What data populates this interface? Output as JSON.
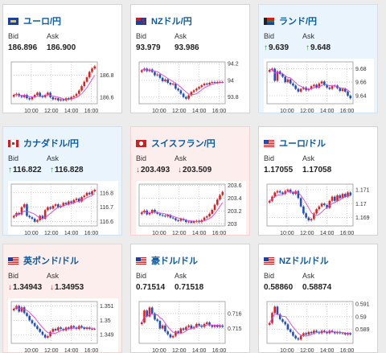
{
  "colors": {
    "up_arrow": "#2a9b2a",
    "down_arrow": "#d02828",
    "title": "#0b5aa6",
    "ma_line": "#e040e0",
    "candle_up": "#e02020",
    "candle_down": "#1f4fc4"
  },
  "cards": [
    {
      "title": "ユーロ/円",
      "flag": "eu-flag-icon",
      "trend": "neutral",
      "bid_label": "Bid",
      "ask_label": "Ask",
      "bid": "186.896",
      "ask": "186.900",
      "arrow": "",
      "chart_data": {
        "type": "candlestick",
        "x_ticks": [
          "10:00",
          "12:00",
          "14:00",
          "16:00"
        ],
        "y_ticks": [
          "186.8",
          "186.6"
        ],
        "closes": [
          186.62,
          186.63,
          186.61,
          186.6,
          186.62,
          186.59,
          186.58,
          186.6,
          186.62,
          186.64,
          186.61,
          186.6,
          186.62,
          186.64,
          186.6,
          186.58,
          186.59,
          186.57,
          186.58,
          186.57,
          186.59,
          186.58,
          186.6,
          186.61,
          186.63,
          186.66,
          186.7,
          186.74,
          186.78,
          186.83,
          186.86,
          186.88
        ],
        "ylim": [
          186.54,
          186.92
        ]
      }
    },
    {
      "title": "NZドル/円",
      "flag": "nz-flag-icon",
      "trend": "neutral",
      "bid_label": "Bid",
      "ask_label": "Ask",
      "bid": "93.979",
      "ask": "93.986",
      "arrow": "",
      "chart_data": {
        "type": "candlestick",
        "x_ticks": [
          "10:00",
          "12:00",
          "14:00",
          "16:00"
        ],
        "y_ticks": [
          "94.2",
          "94",
          "93.8"
        ],
        "closes": [
          94.12,
          94.14,
          94.11,
          94.13,
          94.1,
          94.06,
          94.07,
          94.03,
          93.99,
          94.01,
          93.97,
          93.95,
          93.96,
          93.9,
          93.88,
          93.84,
          93.8,
          93.78,
          93.82,
          93.86,
          93.88,
          93.9,
          93.92,
          93.94,
          93.96,
          93.95,
          93.97,
          93.98,
          93.97,
          93.98,
          93.98,
          93.98
        ],
        "ylim": [
          93.72,
          94.22
        ]
      }
    },
    {
      "title": "ランド/円",
      "flag": "za-flag-icon",
      "trend": "up",
      "bid_label": "Bid",
      "ask_label": "Ask",
      "bid": "9.639",
      "ask": "9.648",
      "arrow": "↑",
      "chart_data": {
        "type": "candlestick",
        "x_ticks": [
          "10:00",
          "12:00",
          "14:00",
          "16:00"
        ],
        "y_ticks": [
          "9.68",
          "9.66",
          "9.64"
        ],
        "closes": [
          9.678,
          9.68,
          9.662,
          9.676,
          9.672,
          9.668,
          9.66,
          9.664,
          9.658,
          9.655,
          9.65,
          9.646,
          9.65,
          9.652,
          9.648,
          9.65,
          9.654,
          9.656,
          9.652,
          9.658,
          9.661,
          9.656,
          9.652,
          9.65,
          9.654,
          9.655,
          9.651,
          9.647,
          9.65,
          9.646,
          9.64,
          9.636
        ],
        "ylim": [
          9.628,
          9.69
        ]
      }
    },
    {
      "title": "カナダドル/円",
      "flag": "ca-flag-icon",
      "trend": "up",
      "bid_label": "Bid",
      "ask_label": "Ask",
      "bid": "116.822",
      "ask": "116.828",
      "arrow": "↑",
      "chart_data": {
        "type": "candlestick",
        "x_ticks": [
          "10:00",
          "12:00",
          "14:00",
          "16:00"
        ],
        "y_ticks": [
          "116.8",
          "116.7",
          "116.6"
        ],
        "closes": [
          116.64,
          116.66,
          116.65,
          116.7,
          116.72,
          116.64,
          116.63,
          116.62,
          116.6,
          116.61,
          116.64,
          116.62,
          116.68,
          116.7,
          116.69,
          116.71,
          116.72,
          116.7,
          116.71,
          116.73,
          116.72,
          116.74,
          116.73,
          116.75,
          116.76,
          116.74,
          116.77,
          116.78,
          116.8,
          116.79,
          116.81,
          116.82
        ],
        "ylim": [
          116.57,
          116.86
        ]
      }
    },
    {
      "title": "スイスフラン/円",
      "flag": "ch-flag-icon",
      "trend": "down",
      "bid_label": "Bid",
      "ask_label": "Ask",
      "bid": "203.493",
      "ask": "203.509",
      "arrow": "↓",
      "chart_data": {
        "type": "candlestick",
        "x_ticks": [
          "10:00",
          "12:00",
          "14:00",
          "16:00"
        ],
        "y_ticks": [
          "203.6",
          "203.4",
          "203.2",
          "203"
        ],
        "closes": [
          203.18,
          203.21,
          203.15,
          203.17,
          203.22,
          203.18,
          203.16,
          203.14,
          203.13,
          203.12,
          203.14,
          203.1,
          203.09,
          203.06,
          203.05,
          203.08,
          203.06,
          203.03,
          203.04,
          203.02,
          203.04,
          203.05,
          203.03,
          203.06,
          203.1,
          203.12,
          203.16,
          203.22,
          203.3,
          203.38,
          203.45,
          203.5
        ],
        "ylim": [
          202.97,
          203.62
        ]
      }
    },
    {
      "title": "ユーロ/ドル",
      "flag": "eu-us-flag-icon",
      "trend": "neutral",
      "bid_label": "Bid",
      "ask_label": "Ask",
      "bid": "1.17055",
      "ask": "1.17058",
      "arrow": "",
      "chart_data": {
        "type": "candlestick",
        "x_ticks": [
          "10:00",
          "12:00",
          "14:00",
          "16:00"
        ],
        "y_ticks": [
          "1.171",
          "1.17",
          "1.169"
        ],
        "closes": [
          1.1702,
          1.1705,
          1.1708,
          1.1709,
          1.1708,
          1.1707,
          1.1709,
          1.171,
          1.1708,
          1.1707,
          1.1709,
          1.1704,
          1.1698,
          1.1693,
          1.169,
          1.1688,
          1.1689,
          1.1693,
          1.1696,
          1.1698,
          1.17,
          1.1699,
          1.1697,
          1.1702,
          1.1705,
          1.1702,
          1.1706,
          1.1704,
          1.1707,
          1.1705,
          1.1708,
          1.1706
        ],
        "ylim": [
          1.1684,
          1.1714
        ]
      }
    },
    {
      "title": "英ポンド/ドル",
      "flag": "gb-us-flag-icon",
      "trend": "down",
      "bid_label": "Bid",
      "ask_label": "Ask",
      "bid": "1.34943",
      "ask": "1.34953",
      "arrow": "↓",
      "chart_data": {
        "type": "candlestick",
        "x_ticks": [
          "10:00",
          "12:00",
          "14:00",
          "16:00"
        ],
        "y_ticks": [
          "1.351",
          "1.35",
          "1.349"
        ],
        "closes": [
          1.3508,
          1.351,
          1.3506,
          1.3509,
          1.3505,
          1.3503,
          1.35,
          1.3498,
          1.3496,
          1.3494,
          1.3492,
          1.349,
          1.3488,
          1.3489,
          1.3492,
          1.3494,
          1.3493,
          1.3495,
          1.3494,
          1.3493,
          1.3495,
          1.3494,
          1.3496,
          1.3495,
          1.3494,
          1.3496,
          1.3495,
          1.3494,
          1.3495,
          1.3494,
          1.3494,
          1.3494
        ],
        "ylim": [
          1.3484,
          1.3513
        ]
      }
    },
    {
      "title": "豪ドル/ドル",
      "flag": "au-us-flag-icon",
      "trend": "neutral",
      "bid_label": "Bid",
      "ask_label": "Ask",
      "bid": "0.71514",
      "ask": "0.71518",
      "arrow": "",
      "chart_data": {
        "type": "candlestick",
        "x_ticks": [
          "10:00",
          "12:00",
          "14:00",
          "16:00"
        ],
        "y_ticks": [
          "0.716",
          "0.715"
        ],
        "closes": [
          0.7154,
          0.7162,
          0.7158,
          0.7164,
          0.716,
          0.7156,
          0.7155,
          0.715,
          0.7152,
          0.7148,
          0.7146,
          0.7144,
          0.7145,
          0.7148,
          0.7147,
          0.715,
          0.7149,
          0.7151,
          0.7152,
          0.715,
          0.7151,
          0.7153,
          0.7152,
          0.7151,
          0.7153,
          0.7154,
          0.7152,
          0.7151,
          0.7152,
          0.7151,
          0.7152,
          0.7151
        ],
        "ylim": [
          0.714,
          0.7168
        ]
      }
    },
    {
      "title": "NZドル/ドル",
      "flag": "nz-us-flag-icon",
      "trend": "neutral",
      "bid_label": "Bid",
      "ask_label": "Ask",
      "bid": "0.58860",
      "ask": "0.58874",
      "arrow": "",
      "chart_data": {
        "type": "candlestick",
        "x_ticks": [
          "10:00",
          "12:00",
          "14:00",
          "16:00"
        ],
        "y_ticks": [
          "0.591",
          "0.59",
          "0.589"
        ],
        "closes": [
          0.5895,
          0.5903,
          0.5908,
          0.5902,
          0.5898,
          0.5896,
          0.5894,
          0.589,
          0.5888,
          0.5885,
          0.5883,
          0.5882,
          0.5885,
          0.5887,
          0.5886,
          0.5888,
          0.5887,
          0.5889,
          0.5888,
          0.5887,
          0.5889,
          0.5888,
          0.5887,
          0.5889,
          0.5888,
          0.5887,
          0.5888,
          0.5887,
          0.5887,
          0.5886,
          0.5887,
          0.5886
        ],
        "ylim": [
          0.5879,
          0.5912
        ]
      }
    }
  ]
}
